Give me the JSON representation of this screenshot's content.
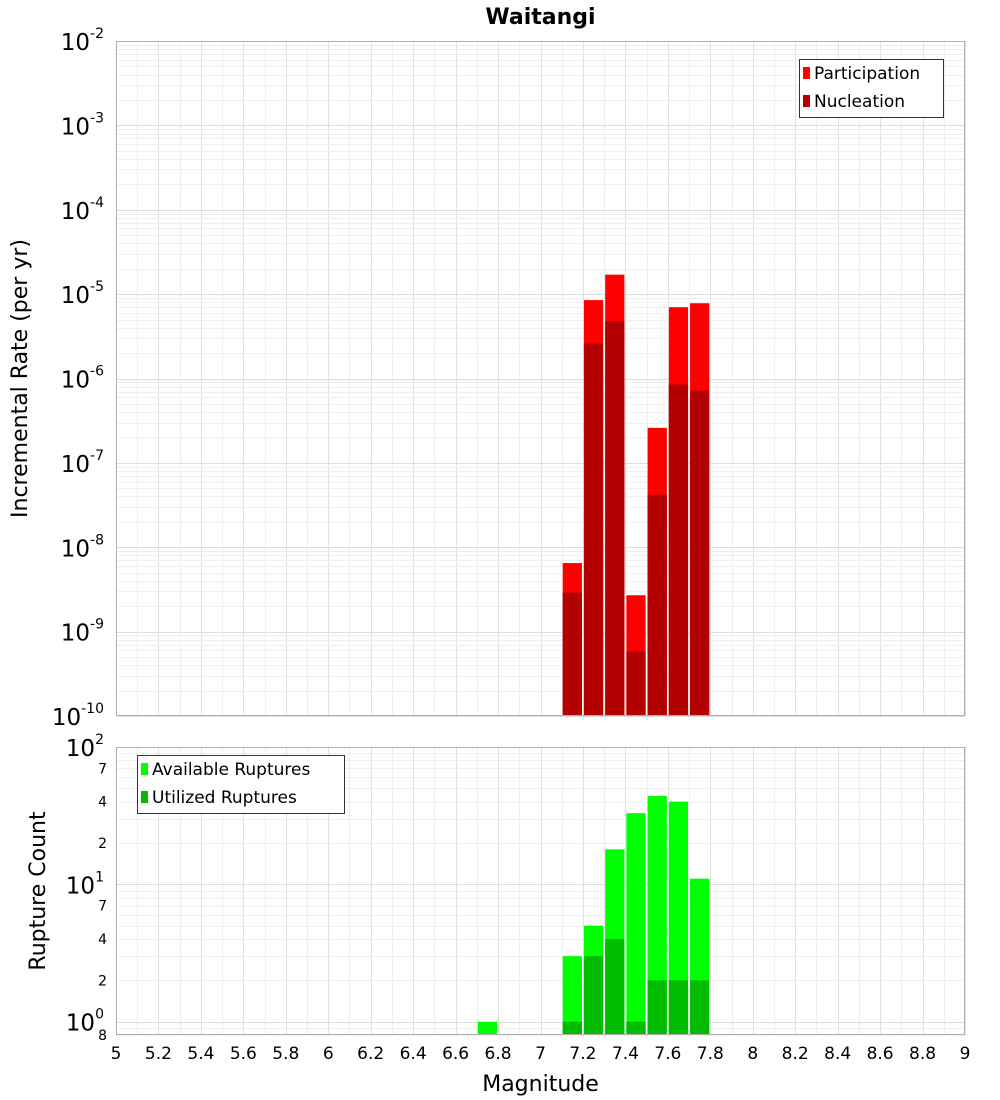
{
  "chart_data": [
    {
      "type": "bar",
      "title": "Waitangi",
      "xlabel": "",
      "ylabel": "Incremental Rate (per yr)",
      "yscale": "log",
      "ylim": [
        1e-10,
        0.01
      ],
      "xlim": [
        5,
        9
      ],
      "bar_width": 0.1,
      "legend": "top-right",
      "grid": true,
      "y_ticks": [
        {
          "base": "10",
          "exp": "-10",
          "value": 1e-10
        },
        {
          "base": "10",
          "exp": "-9",
          "value": 1e-09
        },
        {
          "base": "10",
          "exp": "-8",
          "value": 1e-08
        },
        {
          "base": "10",
          "exp": "-7",
          "value": 1e-07
        },
        {
          "base": "10",
          "exp": "-6",
          "value": 1e-06
        },
        {
          "base": "10",
          "exp": "-5",
          "value": 1e-05
        },
        {
          "base": "10",
          "exp": "-4",
          "value": 0.0001
        },
        {
          "base": "10",
          "exp": "-3",
          "value": 0.001
        },
        {
          "base": "10",
          "exp": "-2",
          "value": 0.01
        }
      ],
      "x": [
        7.15,
        7.25,
        7.35,
        7.45,
        7.55,
        7.65,
        7.75
      ],
      "series": [
        {
          "name": "Participation",
          "color": "#ff0000",
          "values": [
            6.5e-09,
            8.5e-06,
            1.7e-05,
            2.7e-09,
            2.6e-07,
            7e-06,
            7.8e-06
          ]
        },
        {
          "name": "Nucleation",
          "color": "#b30000",
          "values": [
            2.9e-09,
            2.6e-06,
            4.8e-06,
            5.8e-10,
            4.2e-08,
            8.5e-07,
            7.2e-07
          ]
        }
      ]
    },
    {
      "type": "bar",
      "title": "",
      "xlabel": "Magnitude",
      "ylabel": "Rupture Count",
      "yscale": "log",
      "ylim": [
        0.8,
        100
      ],
      "xlim": [
        5,
        9
      ],
      "bar_width": 0.1,
      "legend": "top-left",
      "grid": true,
      "x_ticks": [
        "5",
        "5.2",
        "5.4",
        "5.6",
        "5.8",
        "6",
        "6.2",
        "6.4",
        "6.6",
        "6.8",
        "7",
        "7.2",
        "7.4",
        "7.6",
        "7.8",
        "8",
        "8.2",
        "8.4",
        "8.6",
        "8.8",
        "9"
      ],
      "y_ticks": [
        {
          "base": "10",
          "exp": "0",
          "value": 1
        },
        {
          "base": "10",
          "exp": "1",
          "value": 10
        },
        {
          "base": "10",
          "exp": "2",
          "value": 100
        }
      ],
      "y_minor_ticks": [
        {
          "label": "8",
          "value": 0.8
        },
        {
          "label": "2",
          "value": 2
        },
        {
          "label": "4",
          "value": 4
        },
        {
          "label": "7",
          "value": 7
        },
        {
          "label": "2",
          "value": 20
        },
        {
          "label": "4",
          "value": 40
        },
        {
          "label": "7",
          "value": 70
        }
      ],
      "x": [
        6.75,
        7.15,
        7.25,
        7.35,
        7.45,
        7.55,
        7.65,
        7.75
      ],
      "series": [
        {
          "name": "Available Ruptures",
          "color": "#00ff00",
          "values": [
            1,
            3,
            5,
            18,
            33,
            44,
            40,
            11
          ]
        },
        {
          "name": "Utilized Ruptures",
          "color": "#00bb00",
          "values": [
            0,
            1,
            3,
            4,
            1,
            2,
            2,
            2
          ]
        }
      ]
    }
  ]
}
